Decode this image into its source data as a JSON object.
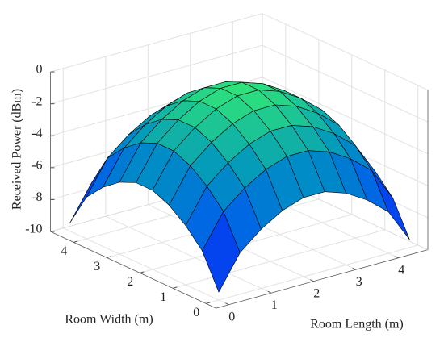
{
  "chart_data": {
    "type": "surface",
    "xlabel": "Room Length (m)",
    "ylabel": "Room Width (m)",
    "zlabel": "Received Power (dBm)",
    "x": [
      0,
      0.5,
      1,
      1.5,
      2,
      2.5,
      3,
      3.5,
      4,
      4.5
    ],
    "y": [
      0,
      0.5,
      1,
      1.5,
      2,
      2.5,
      3,
      3.5,
      4,
      4.5
    ],
    "z": [
      [
        -9.5,
        -7.4,
        -6.3,
        -5.5,
        -5.05,
        -5.05,
        -5.5,
        -6.3,
        -7.4,
        -9.5
      ],
      [
        -7.4,
        -5.3,
        -4.2,
        -3.4,
        -2.95,
        -2.95,
        -3.4,
        -4.2,
        -5.3,
        -7.4
      ],
      [
        -6.3,
        -4.2,
        -3.1,
        -2.3,
        -1.85,
        -1.85,
        -2.3,
        -3.1,
        -4.2,
        -6.3
      ],
      [
        -5.5,
        -3.4,
        -2.3,
        -1.5,
        -1.05,
        -1.05,
        -1.5,
        -2.3,
        -3.4,
        -5.5
      ],
      [
        -5.05,
        -2.95,
        -1.85,
        -1.05,
        -0.6,
        -0.6,
        -1.05,
        -1.85,
        -2.95,
        -5.05
      ],
      [
        -5.05,
        -2.95,
        -1.85,
        -1.05,
        -0.6,
        -0.6,
        -1.05,
        -1.85,
        -2.95,
        -5.05
      ],
      [
        -5.5,
        -3.4,
        -2.3,
        -1.5,
        -1.05,
        -1.05,
        -1.5,
        -2.3,
        -3.4,
        -5.5
      ],
      [
        -6.3,
        -4.2,
        -3.1,
        -2.3,
        -1.85,
        -1.85,
        -2.3,
        -3.1,
        -4.2,
        -6.3
      ],
      [
        -7.4,
        -5.3,
        -4.2,
        -3.4,
        -2.95,
        -2.95,
        -3.4,
        -4.2,
        -5.3,
        -7.4
      ],
      [
        -9.5,
        -7.4,
        -6.3,
        -5.5,
        -5.05,
        -5.05,
        -5.5,
        -6.3,
        -7.4,
        -9.5
      ]
    ],
    "xlim": [
      -0.3,
      4.7
    ],
    "ylim": [
      -0.3,
      4.7
    ],
    "zlim": [
      -10,
      0
    ],
    "xticks": [
      0,
      1,
      2,
      3,
      4
    ],
    "yticks": [
      0,
      1,
      2,
      3,
      4
    ],
    "zticks": [
      -10,
      -8,
      -6,
      -4,
      -2,
      0
    ],
    "grid": true
  }
}
